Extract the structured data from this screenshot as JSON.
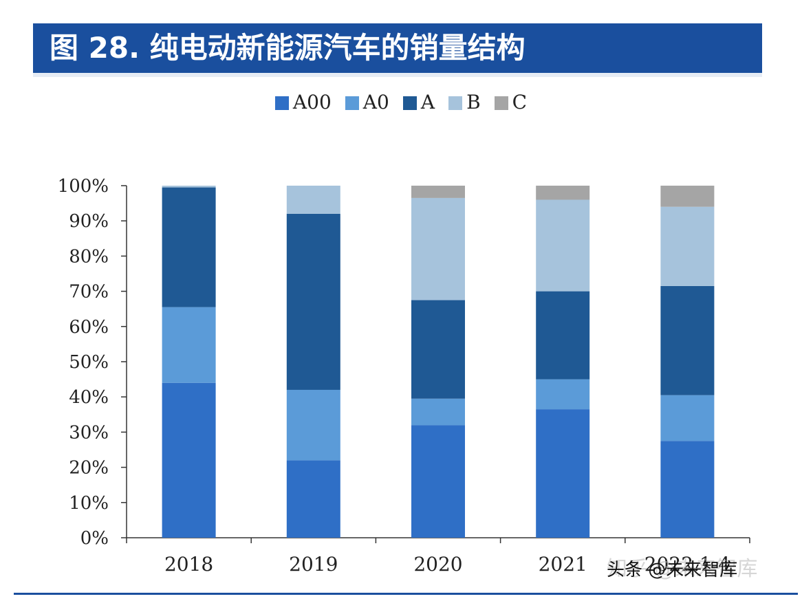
{
  "header": {
    "title": "图 28. 纯电动新能源汽车的销量结构"
  },
  "colors": {
    "header_bg": "#1a4f9e",
    "A00": "#2f6fc6",
    "A0": "#5b9bd8",
    "A": "#1f5994",
    "B": "#a6c3dc",
    "C": "#a5a5a5"
  },
  "watermark": {
    "faint": "知乎 @未来智库",
    "main": "头条 @未来智库"
  },
  "chart_data": {
    "type": "bar",
    "stacked": true,
    "categories": [
      "2018",
      "2019",
      "2020",
      "2021",
      "2022.1-4"
    ],
    "series": [
      {
        "name": "A00",
        "values": [
          44,
          22,
          32,
          36.5,
          27.5
        ]
      },
      {
        "name": "A0",
        "values": [
          21.5,
          20,
          7.5,
          8.5,
          13
        ]
      },
      {
        "name": "A",
        "values": [
          34,
          50,
          28,
          25,
          31
        ]
      },
      {
        "name": "B",
        "values": [
          0.5,
          8,
          29,
          26,
          22.5
        ]
      },
      {
        "name": "C",
        "values": [
          0,
          0,
          3.5,
          4,
          6
        ]
      }
    ],
    "ylim": [
      0,
      100
    ],
    "yticks": [
      "0%",
      "10%",
      "20%",
      "30%",
      "40%",
      "50%",
      "60%",
      "70%",
      "80%",
      "90%",
      "100%"
    ],
    "title": "",
    "xlabel": "",
    "ylabel": "",
    "legend": "top-center"
  }
}
